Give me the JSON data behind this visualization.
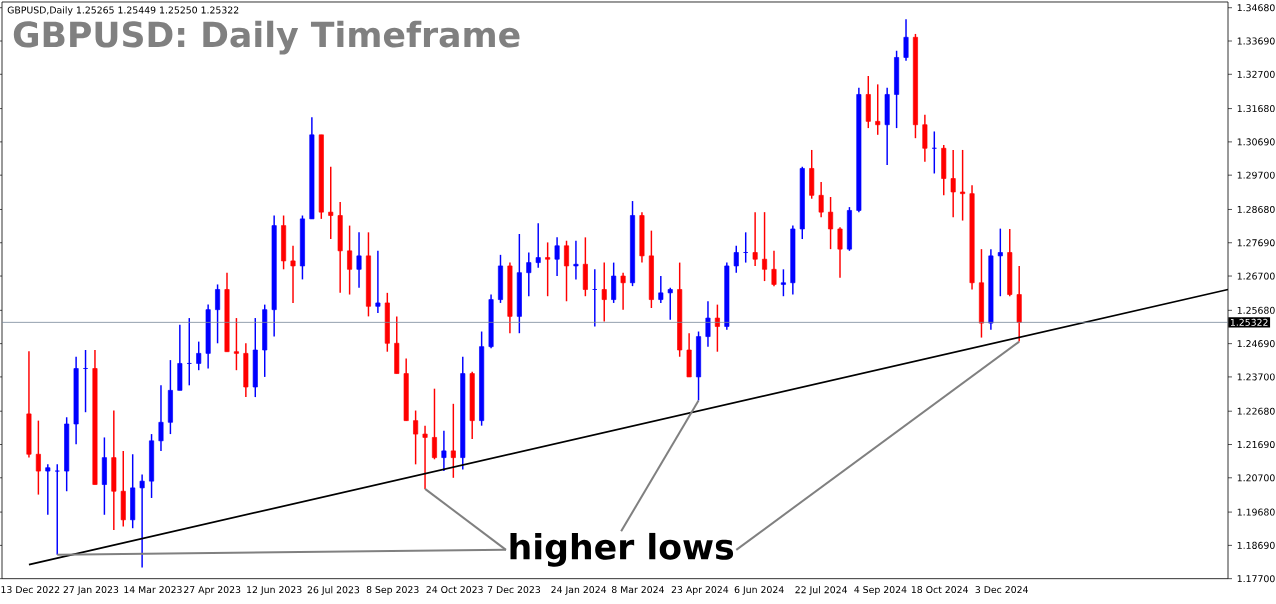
{
  "chart_data": {
    "type": "candlestick",
    "title": "GBPUSD: Daily Timeframe",
    "subtitle": "GBPUSD,Daily  1.25265 1.25449 1.25250 1.25322",
    "annotations": [
      {
        "text": "higher lows",
        "x": "2024-04-22",
        "y": 1.23
      }
    ],
    "x": [
      "2022-12-12",
      "2022-12-19",
      "2022-12-26",
      "2023-01-02",
      "2023-01-09",
      "2023-01-16",
      "2023-01-23",
      "2023-01-30",
      "2023-02-06",
      "2023-02-13",
      "2023-02-20",
      "2023-02-27",
      "2023-03-06",
      "2023-03-13",
      "2023-03-20",
      "2023-03-27",
      "2023-04-03",
      "2023-04-10",
      "2023-04-17",
      "2023-04-24",
      "2023-05-01",
      "2023-05-08",
      "2023-05-15",
      "2023-05-22",
      "2023-05-29",
      "2023-06-05",
      "2023-06-12",
      "2023-06-19",
      "2023-06-26",
      "2023-07-03",
      "2023-07-10",
      "2023-07-17",
      "2023-07-24",
      "2023-07-31",
      "2023-08-07",
      "2023-08-14",
      "2023-08-21",
      "2023-08-28",
      "2023-09-04",
      "2023-09-11",
      "2023-09-18",
      "2023-09-25",
      "2023-10-02",
      "2023-10-09",
      "2023-10-16",
      "2023-10-23",
      "2023-10-30",
      "2023-11-06",
      "2023-11-13",
      "2023-11-20",
      "2023-11-27",
      "2023-12-04",
      "2023-12-11",
      "2023-12-18",
      "2023-12-25",
      "2024-01-01",
      "2024-01-08",
      "2024-01-15",
      "2024-01-22",
      "2024-01-29",
      "2024-02-05",
      "2024-02-12",
      "2024-02-19",
      "2024-02-26",
      "2024-03-04",
      "2024-03-11",
      "2024-03-18",
      "2024-03-25",
      "2024-04-01",
      "2024-04-08",
      "2024-04-15",
      "2024-04-22",
      "2024-04-29",
      "2024-05-06",
      "2024-05-13",
      "2024-05-20",
      "2024-05-27",
      "2024-06-03",
      "2024-06-10",
      "2024-06-17",
      "2024-06-24",
      "2024-07-01",
      "2024-07-08",
      "2024-07-15",
      "2024-07-22",
      "2024-07-29",
      "2024-08-05",
      "2024-08-12",
      "2024-08-19",
      "2024-08-26",
      "2024-09-02",
      "2024-09-09",
      "2024-09-16",
      "2024-09-23",
      "2024-09-30",
      "2024-10-07",
      "2024-10-14",
      "2024-10-21",
      "2024-10-28",
      "2024-11-04",
      "2024-11-11",
      "2024-11-18",
      "2024-11-25",
      "2024-12-02",
      "2024-12-09",
      "2024-12-16"
    ],
    "ohlc": [
      [
        1.226,
        1.2446,
        1.213,
        1.214
      ],
      [
        1.214,
        1.224,
        1.202,
        1.209
      ],
      [
        1.209,
        1.211,
        1.196,
        1.21
      ],
      [
        1.209,
        1.211,
        1.1841,
        1.209
      ],
      [
        1.209,
        1.225,
        1.203,
        1.223
      ],
      [
        1.223,
        1.243,
        1.217,
        1.2395
      ],
      [
        1.2395,
        1.245,
        1.2265,
        1.2395
      ],
      [
        1.2395,
        1.245,
        1.205,
        1.205
      ],
      [
        1.205,
        1.219,
        1.196,
        1.213
      ],
      [
        1.213,
        1.227,
        1.1915,
        1.203
      ],
      [
        1.203,
        1.215,
        1.1925,
        1.1945
      ],
      [
        1.1945,
        1.214,
        1.192,
        1.204
      ],
      [
        1.204,
        1.208,
        1.1803,
        1.206
      ],
      [
        1.206,
        1.22,
        1.201,
        1.218
      ],
      [
        1.218,
        1.2345,
        1.215,
        1.2235
      ],
      [
        1.2235,
        1.242,
        1.22,
        1.233
      ],
      [
        1.233,
        1.2525,
        1.233,
        1.241
      ],
      [
        1.241,
        1.2545,
        1.2345,
        1.241
      ],
      [
        1.241,
        1.2475,
        1.239,
        1.244
      ],
      [
        1.244,
        1.2585,
        1.2395,
        1.257
      ],
      [
        1.257,
        1.2645,
        1.247,
        1.263
      ],
      [
        1.263,
        1.268,
        1.2445,
        1.2445
      ],
      [
        1.2445,
        1.2545,
        1.239,
        1.244
      ],
      [
        1.244,
        1.247,
        1.231,
        1.234
      ],
      [
        1.234,
        1.2545,
        1.231,
        1.245
      ],
      [
        1.245,
        1.2585,
        1.237,
        1.257
      ],
      [
        1.257,
        1.285,
        1.249,
        1.282
      ],
      [
        1.282,
        1.285,
        1.269,
        1.2715
      ],
      [
        1.2715,
        1.276,
        1.259,
        1.27
      ],
      [
        1.27,
        1.285,
        1.266,
        1.284
      ],
      [
        1.284,
        1.3142,
        1.284,
        1.309
      ],
      [
        1.309,
        1.309,
        1.284,
        1.286
      ],
      [
        1.286,
        1.2995,
        1.278,
        1.285
      ],
      [
        1.285,
        1.289,
        1.262,
        1.2745
      ],
      [
        1.2745,
        1.282,
        1.2615,
        1.269
      ],
      [
        1.269,
        1.28,
        1.2635,
        1.273
      ],
      [
        1.273,
        1.28,
        1.255,
        1.258
      ],
      [
        1.258,
        1.2745,
        1.256,
        1.259
      ],
      [
        1.259,
        1.262,
        1.2445,
        1.247
      ],
      [
        1.247,
        1.255,
        1.238,
        1.238
      ],
      [
        1.238,
        1.2425,
        1.224,
        1.224
      ],
      [
        1.224,
        1.227,
        1.211,
        1.22
      ],
      [
        1.22,
        1.2225,
        1.2037,
        1.219
      ],
      [
        1.219,
        1.2335,
        1.2125,
        1.213
      ],
      [
        1.213,
        1.221,
        1.209,
        1.215
      ],
      [
        1.215,
        1.229,
        1.207,
        1.213
      ],
      [
        1.213,
        1.243,
        1.2095,
        1.238
      ],
      [
        1.238,
        1.2385,
        1.2185,
        1.224
      ],
      [
        1.224,
        1.2505,
        1.2225,
        1.246
      ],
      [
        1.246,
        1.2615,
        1.2455,
        1.26
      ],
      [
        1.26,
        1.2733,
        1.259,
        1.27
      ],
      [
        1.27,
        1.271,
        1.25,
        1.255
      ],
      [
        1.255,
        1.2795,
        1.25,
        1.268
      ],
      [
        1.268,
        1.274,
        1.261,
        1.271
      ],
      [
        1.271,
        1.2827,
        1.2695,
        1.2725
      ],
      [
        1.2725,
        1.277,
        1.261,
        1.272
      ],
      [
        1.272,
        1.2785,
        1.267,
        1.276
      ],
      [
        1.276,
        1.2775,
        1.2595,
        1.27
      ],
      [
        1.27,
        1.2775,
        1.266,
        1.2705
      ],
      [
        1.2705,
        1.2785,
        1.261,
        1.263
      ],
      [
        1.263,
        1.269,
        1.252,
        1.263
      ],
      [
        1.263,
        1.271,
        1.2535,
        1.26
      ],
      [
        1.26,
        1.271,
        1.259,
        1.267
      ],
      [
        1.267,
        1.268,
        1.257,
        1.265
      ],
      [
        1.265,
        1.2893,
        1.264,
        1.285
      ],
      [
        1.285,
        1.286,
        1.271,
        1.273
      ],
      [
        1.273,
        1.2805,
        1.2575,
        1.26
      ],
      [
        1.26,
        1.267,
        1.259,
        1.262
      ],
      [
        1.262,
        1.2635,
        1.254,
        1.263
      ],
      [
        1.263,
        1.271,
        1.243,
        1.245
      ],
      [
        1.245,
        1.25,
        1.237,
        1.237
      ],
      [
        1.237,
        1.2505,
        1.23,
        1.249
      ],
      [
        1.249,
        1.2595,
        1.246,
        1.2545
      ],
      [
        1.2545,
        1.2585,
        1.2445,
        1.252
      ],
      [
        1.252,
        1.271,
        1.251,
        1.27
      ],
      [
        1.27,
        1.276,
        1.268,
        1.274
      ],
      [
        1.274,
        1.28,
        1.271,
        1.274
      ],
      [
        1.274,
        1.286,
        1.27,
        1.272
      ],
      [
        1.272,
        1.286,
        1.2655,
        1.269
      ],
      [
        1.269,
        1.2745,
        1.264,
        1.2645
      ],
      [
        1.2645,
        1.269,
        1.261,
        1.265
      ],
      [
        1.265,
        1.282,
        1.2615,
        1.281
      ],
      [
        1.281,
        1.2995,
        1.278,
        1.299
      ],
      [
        1.299,
        1.3045,
        1.29,
        1.291
      ],
      [
        1.291,
        1.295,
        1.2845,
        1.286
      ],
      [
        1.286,
        1.2905,
        1.275,
        1.281
      ],
      [
        1.281,
        1.2815,
        1.2665,
        1.275
      ],
      [
        1.275,
        1.2875,
        1.2745,
        1.2865
      ],
      [
        1.2865,
        1.323,
        1.286,
        1.321
      ],
      [
        1.321,
        1.3265,
        1.311,
        1.313
      ],
      [
        1.313,
        1.324,
        1.309,
        1.312
      ],
      [
        1.312,
        1.323,
        1.3,
        1.321
      ],
      [
        1.321,
        1.334,
        1.311,
        1.332
      ],
      [
        1.332,
        1.3434,
        1.331,
        1.338
      ],
      [
        1.338,
        1.339,
        1.308,
        1.312
      ],
      [
        1.312,
        1.315,
        1.301,
        1.305
      ],
      [
        1.305,
        1.31,
        1.2975,
        1.305
      ],
      [
        1.305,
        1.306,
        1.291,
        1.296
      ],
      [
        1.296,
        1.3045,
        1.2845,
        1.292
      ],
      [
        1.292,
        1.3045,
        1.2835,
        1.2915
      ],
      [
        1.2915,
        1.294,
        1.263,
        1.265
      ],
      [
        1.265,
        1.275,
        1.2487,
        1.253
      ],
      [
        1.253,
        1.275,
        1.251,
        1.273
      ],
      [
        1.273,
        1.2811,
        1.261,
        1.274
      ],
      [
        1.274,
        1.281,
        1.261,
        1.2615
      ],
      [
        1.2615,
        1.27,
        1.2475,
        1.25322
      ]
    ],
    "colors": [
      "#ff0000",
      "#ff0000",
      "#0000ff",
      "#0000ff",
      "#0000ff",
      "#0000ff",
      "#0000ff",
      "#ff0000",
      "#0000ff",
      "#ff0000",
      "#ff0000",
      "#0000ff",
      "#0000ff",
      "#0000ff",
      "#0000ff",
      "#0000ff",
      "#0000ff",
      "#0000ff",
      "#0000ff",
      "#0000ff",
      "#0000ff",
      "#ff0000",
      "#ff0000",
      "#ff0000",
      "#0000ff",
      "#0000ff",
      "#0000ff",
      "#ff0000",
      "#ff0000",
      "#0000ff",
      "#0000ff",
      "#ff0000",
      "#ff0000",
      "#ff0000",
      "#ff0000",
      "#0000ff",
      "#ff0000",
      "#0000ff",
      "#ff0000",
      "#ff0000",
      "#ff0000",
      "#ff0000",
      "#ff0000",
      "#ff0000",
      "#0000ff",
      "#ff0000",
      "#0000ff",
      "#ff0000",
      "#0000ff",
      "#0000ff",
      "#0000ff",
      "#ff0000",
      "#0000ff",
      "#0000ff",
      "#0000ff",
      "#ff0000",
      "#0000ff",
      "#ff0000",
      "#0000ff",
      "#ff0000",
      "#0000ff",
      "#ff0000",
      "#0000ff",
      "#ff0000",
      "#0000ff",
      "#ff0000",
      "#ff0000",
      "#0000ff",
      "#0000ff",
      "#ff0000",
      "#ff0000",
      "#0000ff",
      "#0000ff",
      "#ff0000",
      "#0000ff",
      "#0000ff",
      "#0000ff",
      "#ff0000",
      "#ff0000",
      "#ff0000",
      "#0000ff",
      "#0000ff",
      "#0000ff",
      "#ff0000",
      "#ff0000",
      "#ff0000",
      "#ff0000",
      "#0000ff",
      "#0000ff",
      "#ff0000",
      "#ff0000",
      "#0000ff",
      "#0000ff",
      "#0000ff",
      "#ff0000",
      "#ff0000",
      "#0000ff",
      "#ff0000",
      "#ff0000",
      "#ff0000",
      "#ff0000",
      "#ff0000",
      "#0000ff",
      "#0000ff",
      "#ff0000",
      "#ff0000"
    ],
    "series": [
      {
        "type": "line",
        "color": "#000000",
        "x": [
          "2022-12-12",
          "2025-05-20"
        ],
        "values": [
          1.1812,
          1.263
        ]
      }
    ],
    "ref_lines": [
      {
        "axis": "y",
        "value": 1.25322,
        "label": "1.25322",
        "color": "#778899"
      }
    ],
    "xlim": [
      "2022-11-22",
      "2025-05-20"
    ],
    "xticks": [
      {
        "value": "2022-12-13",
        "label": "13 Dec 2022"
      },
      {
        "value": "2023-01-27",
        "label": "27 Jan 2023"
      },
      {
        "value": "2023-03-14",
        "label": "14 Mar 2023"
      },
      {
        "value": "2023-04-27",
        "label": "27 Apr 2023"
      },
      {
        "value": "2023-06-12",
        "label": "12 Jun 2023"
      },
      {
        "value": "2023-07-26",
        "label": "26 Jul 2023"
      },
      {
        "value": "2023-09-08",
        "label": "8 Sep 2023"
      },
      {
        "value": "2023-10-24",
        "label": "24 Oct 2023"
      },
      {
        "value": "2023-12-07",
        "label": "7 Dec 2023"
      },
      {
        "value": "2024-01-24",
        "label": "24 Jan 2024"
      },
      {
        "value": "2024-03-08",
        "label": "8 Mar 2024"
      },
      {
        "value": "2024-04-23",
        "label": "23 Apr 2024"
      },
      {
        "value": "2024-06-06",
        "label": "6 Jun 2024"
      },
      {
        "value": "2024-07-22",
        "label": "22 Jul 2024"
      },
      {
        "value": "2024-09-04",
        "label": "4 Sep 2024"
      },
      {
        "value": "2024-10-18",
        "label": "18 Oct 2024"
      },
      {
        "value": "2024-12-03",
        "label": "3 Dec 2024"
      }
    ],
    "ylim": [
      1.177,
      1.3485
    ],
    "yticks": [
      {
        "value": 1.177,
        "label": "1.17700"
      },
      {
        "value": 1.1869,
        "label": "1.18690"
      },
      {
        "value": 1.1968,
        "label": "1.19680"
      },
      {
        "value": 1.207,
        "label": "1.20700"
      },
      {
        "value": 1.2169,
        "label": "1.21690"
      },
      {
        "value": 1.2268,
        "label": "1.22680"
      },
      {
        "value": 1.237,
        "label": "1.23700"
      },
      {
        "value": 1.2469,
        "label": "1.24690"
      },
      {
        "value": 1.2568,
        "label": "1.25680"
      },
      {
        "value": 1.267,
        "label": "1.26700"
      },
      {
        "value": 1.2769,
        "label": "1.27690"
      },
      {
        "value": 1.2868,
        "label": "1.28680"
      },
      {
        "value": 1.297,
        "label": "1.29700"
      },
      {
        "value": 1.3069,
        "label": "1.30690"
      },
      {
        "value": 1.3168,
        "label": "1.31680"
      },
      {
        "value": 1.327,
        "label": "1.32700"
      },
      {
        "value": 1.3369,
        "label": "1.33690"
      },
      {
        "value": 1.3468,
        "label": "1.34680"
      }
    ],
    "grid": false
  }
}
